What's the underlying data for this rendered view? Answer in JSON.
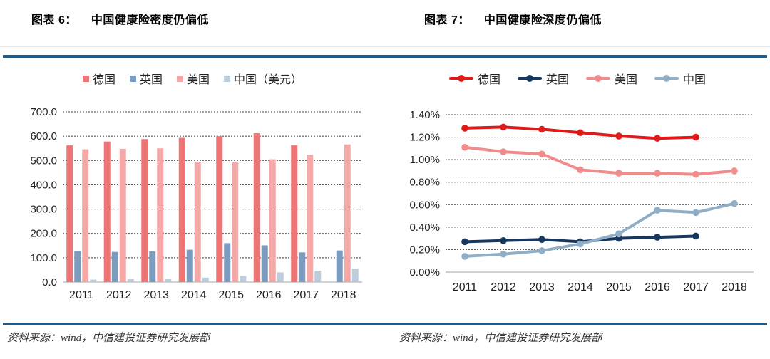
{
  "header": {
    "left_title_label": "图表 6：",
    "left_title_text": "中国健康险密度仍偏低",
    "right_title_label": "图表 7：",
    "right_title_text": "中国健康险深度仍偏低"
  },
  "footer": {
    "left_source": "资料来源：wind，中信建投证券研究发展部",
    "right_source": "资料来源：wind，中信建投证券研究发展部"
  },
  "colors": {
    "rule_blue": "#1F5C8B",
    "grid_line": "#404040",
    "baseline": "#A6A6A6",
    "tick_text": "#1f1f1f"
  },
  "chart_data": [
    {
      "id": "health-insurance-density",
      "type": "bar",
      "title": "中国健康险密度仍偏低",
      "categories": [
        "2011",
        "2012",
        "2013",
        "2014",
        "2015",
        "2016",
        "2017",
        "2018"
      ],
      "series": [
        {
          "name": "德国",
          "color": "#EE7576",
          "values": [
            562,
            578,
            588,
            593,
            600,
            612,
            562,
            null
          ]
        },
        {
          "name": "英国",
          "color": "#7B9CBE",
          "values": [
            128,
            124,
            126,
            133,
            160,
            151,
            122,
            130
          ]
        },
        {
          "name": "美国",
          "color": "#F5A8A8",
          "values": [
            546,
            548,
            550,
            492,
            494,
            505,
            524,
            566
          ]
        },
        {
          "name": "中国（美元）",
          "color": "#BCCEDE",
          "values": [
            10,
            12,
            12,
            18,
            25,
            40,
            47,
            55
          ]
        }
      ],
      "ylim": [
        0,
        700
      ],
      "ytick_step": 100,
      "ytick_labels": [
        "0.0",
        "100.0",
        "200.0",
        "300.0",
        "400.0",
        "500.0",
        "600.0",
        "700.0"
      ],
      "grid": "dashed-horizontal",
      "legend_position": "top"
    },
    {
      "id": "health-insurance-depth",
      "type": "line",
      "title": "中国健康险深度仍偏低",
      "categories": [
        "2011",
        "2012",
        "2013",
        "2014",
        "2015",
        "2016",
        "2017",
        "2018"
      ],
      "series": [
        {
          "name": "德国",
          "color": "#DF1A1A",
          "values": [
            1.28,
            1.29,
            1.27,
            1.24,
            1.21,
            1.19,
            1.2,
            null
          ]
        },
        {
          "name": "英国",
          "color": "#17375E",
          "values": [
            0.27,
            0.28,
            0.29,
            0.27,
            0.3,
            0.31,
            0.32,
            null
          ]
        },
        {
          "name": "美国",
          "color": "#F18C8C",
          "values": [
            1.11,
            1.07,
            1.05,
            0.91,
            0.88,
            0.88,
            0.87,
            0.9
          ]
        },
        {
          "name": "中国",
          "color": "#91AEC7",
          "values": [
            0.14,
            0.16,
            0.19,
            0.25,
            0.34,
            0.55,
            0.53,
            0.61
          ]
        }
      ],
      "ylim": [
        0,
        1.4
      ],
      "ytick_step": 0.2,
      "ytick_labels": [
        "0.00%",
        "0.20%",
        "0.40%",
        "0.60%",
        "0.80%",
        "1.00%",
        "1.20%",
        "1.40%"
      ],
      "grid": "dashed-horizontal",
      "legend_position": "top"
    }
  ]
}
